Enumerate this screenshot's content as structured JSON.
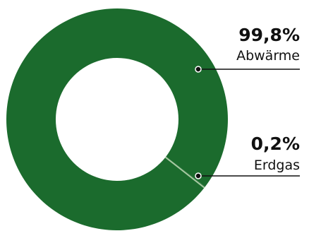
{
  "chart_data": {
    "type": "pie",
    "style": "donut",
    "slices": [
      {
        "label": "Abwärme",
        "value": 99.8,
        "value_label": "99,8%",
        "color": "#1b6b2d"
      },
      {
        "label": "Erdgas",
        "value": 0.2,
        "value_label": "0,2%",
        "color": "#1b6b2d"
      }
    ],
    "separator_color": "#a8c9a3",
    "leader_color": "#111111",
    "legend": "right"
  }
}
